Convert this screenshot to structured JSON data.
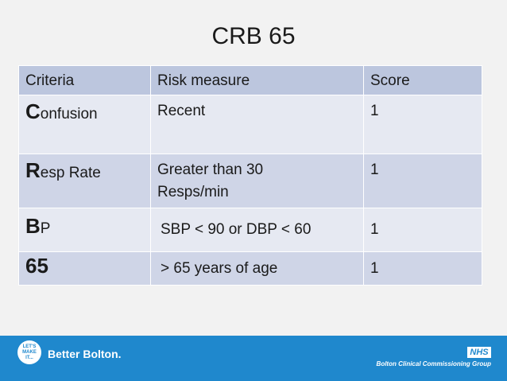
{
  "title": "CRB 65",
  "table": {
    "headers": [
      "Criteria",
      "Risk measure",
      "Score"
    ],
    "rows": [
      {
        "first": "C",
        "rest": "onfusion",
        "measure": "Recent",
        "measure2": "",
        "score": "1"
      },
      {
        "first": "R",
        "rest": "esp Rate",
        "measure": "Greater than 30",
        "measure2": "Resps/min",
        "score": "1"
      },
      {
        "first": "B",
        "rest": "P",
        "measure": "SBP < 90 or DBP < 60",
        "measure2": "",
        "score": "1"
      },
      {
        "first": "65",
        "rest": "",
        "measure": "> 65 years of age",
        "measure2": "",
        "score": "1"
      }
    ]
  },
  "footer": {
    "logo_text_1": "LET'S",
    "logo_text_2": "MAKE",
    "logo_text_3": "IT...",
    "brand": "Better Bolton.",
    "nhs": "NHS",
    "ccg": "Bolton Clinical Commissioning Group",
    "background": "#1f88cd"
  }
}
